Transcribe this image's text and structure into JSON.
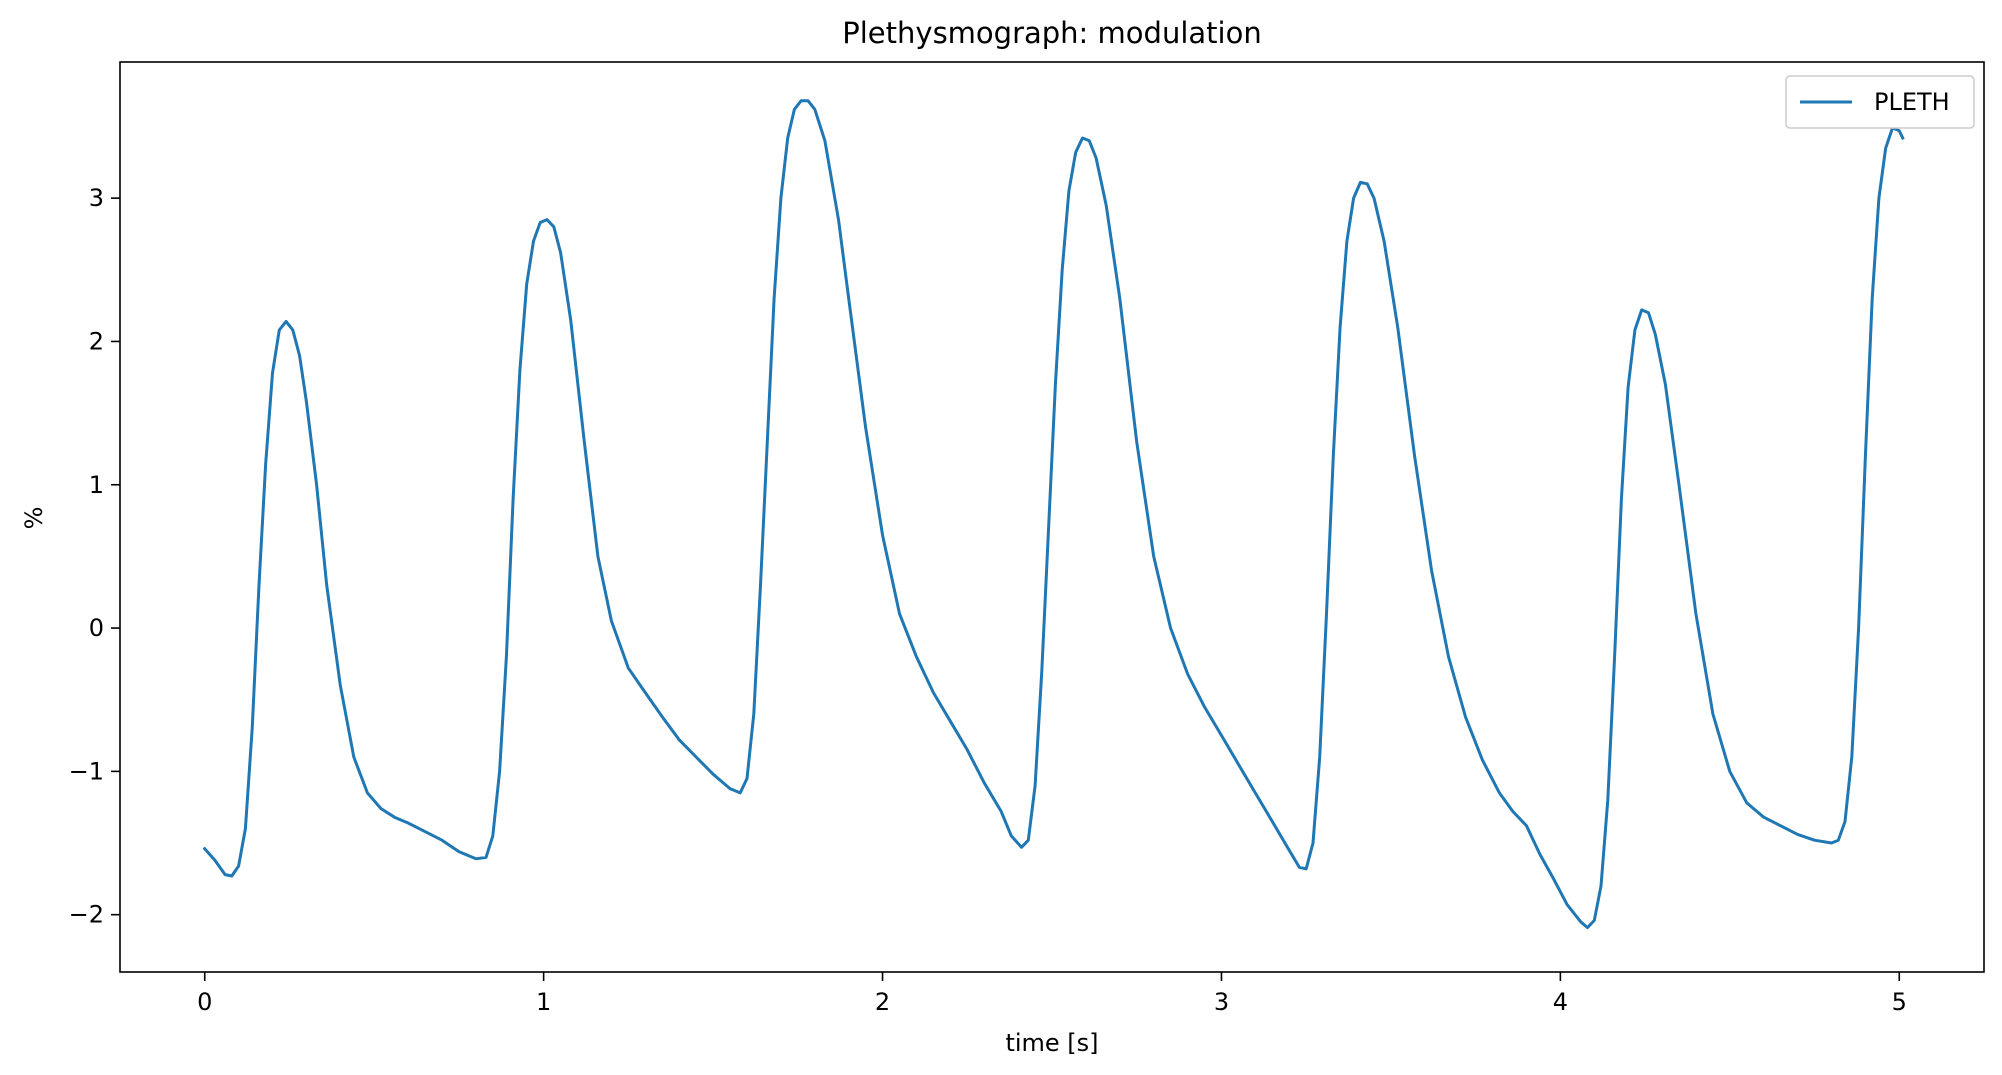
{
  "chart_data": {
    "type": "line",
    "title": "Plethysmograph: modulation",
    "xlabel": "time [s]",
    "ylabel": "%",
    "xlim": [
      -0.25,
      5.25
    ],
    "ylim": [
      -2.4,
      3.95
    ],
    "x_ticks": [
      0,
      1,
      2,
      3,
      4,
      5
    ],
    "x_tick_labels": [
      "0",
      "1",
      "2",
      "3",
      "4",
      "5"
    ],
    "y_ticks": [
      -2,
      -1,
      0,
      1,
      2,
      3
    ],
    "y_tick_labels": [
      "−2",
      "−1",
      "0",
      "1",
      "2",
      "3"
    ],
    "grid": false,
    "legend_position": "top-right",
    "series": [
      {
        "name": "PLETH",
        "color": "#1f77b4",
        "points": [
          [
            0.0,
            -1.54
          ],
          [
            0.03,
            -1.62
          ],
          [
            0.06,
            -1.72
          ],
          [
            0.08,
            -1.73
          ],
          [
            0.1,
            -1.66
          ],
          [
            0.12,
            -1.4
          ],
          [
            0.14,
            -0.7
          ],
          [
            0.16,
            0.3
          ],
          [
            0.18,
            1.15
          ],
          [
            0.2,
            1.78
          ],
          [
            0.22,
            2.08
          ],
          [
            0.24,
            2.14
          ],
          [
            0.26,
            2.08
          ],
          [
            0.28,
            1.9
          ],
          [
            0.3,
            1.58
          ],
          [
            0.33,
            1.0
          ],
          [
            0.36,
            0.3
          ],
          [
            0.4,
            -0.4
          ],
          [
            0.44,
            -0.9
          ],
          [
            0.48,
            -1.15
          ],
          [
            0.52,
            -1.26
          ],
          [
            0.56,
            -1.32
          ],
          [
            0.6,
            -1.36
          ],
          [
            0.65,
            -1.42
          ],
          [
            0.7,
            -1.48
          ],
          [
            0.75,
            -1.56
          ],
          [
            0.8,
            -1.61
          ],
          [
            0.83,
            -1.6
          ],
          [
            0.85,
            -1.45
          ],
          [
            0.87,
            -1.0
          ],
          [
            0.89,
            -0.2
          ],
          [
            0.91,
            0.9
          ],
          [
            0.93,
            1.8
          ],
          [
            0.95,
            2.4
          ],
          [
            0.97,
            2.7
          ],
          [
            0.99,
            2.83
          ],
          [
            1.01,
            2.85
          ],
          [
            1.03,
            2.8
          ],
          [
            1.05,
            2.62
          ],
          [
            1.08,
            2.15
          ],
          [
            1.12,
            1.3
          ],
          [
            1.16,
            0.5
          ],
          [
            1.2,
            0.05
          ],
          [
            1.25,
            -0.28
          ],
          [
            1.3,
            -0.45
          ],
          [
            1.35,
            -0.62
          ],
          [
            1.4,
            -0.78
          ],
          [
            1.45,
            -0.9
          ],
          [
            1.5,
            -1.02
          ],
          [
            1.55,
            -1.12
          ],
          [
            1.58,
            -1.15
          ],
          [
            1.6,
            -1.05
          ],
          [
            1.62,
            -0.6
          ],
          [
            1.64,
            0.3
          ],
          [
            1.66,
            1.3
          ],
          [
            1.68,
            2.3
          ],
          [
            1.7,
            3.0
          ],
          [
            1.72,
            3.42
          ],
          [
            1.74,
            3.62
          ],
          [
            1.76,
            3.68
          ],
          [
            1.78,
            3.68
          ],
          [
            1.8,
            3.62
          ],
          [
            1.83,
            3.4
          ],
          [
            1.87,
            2.85
          ],
          [
            1.9,
            2.3
          ],
          [
            1.95,
            1.4
          ],
          [
            2.0,
            0.65
          ],
          [
            2.05,
            0.1
          ],
          [
            2.1,
            -0.2
          ],
          [
            2.15,
            -0.45
          ],
          [
            2.2,
            -0.65
          ],
          [
            2.25,
            -0.85
          ],
          [
            2.3,
            -1.08
          ],
          [
            2.35,
            -1.28
          ],
          [
            2.38,
            -1.45
          ],
          [
            2.41,
            -1.53
          ],
          [
            2.43,
            -1.48
          ],
          [
            2.45,
            -1.1
          ],
          [
            2.47,
            -0.3
          ],
          [
            2.49,
            0.7
          ],
          [
            2.51,
            1.7
          ],
          [
            2.53,
            2.5
          ],
          [
            2.55,
            3.05
          ],
          [
            2.57,
            3.32
          ],
          [
            2.59,
            3.42
          ],
          [
            2.61,
            3.4
          ],
          [
            2.63,
            3.28
          ],
          [
            2.66,
            2.95
          ],
          [
            2.7,
            2.3
          ],
          [
            2.75,
            1.3
          ],
          [
            2.8,
            0.5
          ],
          [
            2.85,
            0.0
          ],
          [
            2.9,
            -0.32
          ],
          [
            2.95,
            -0.55
          ],
          [
            3.0,
            -0.75
          ],
          [
            3.05,
            -0.95
          ],
          [
            3.1,
            -1.15
          ],
          [
            3.15,
            -1.35
          ],
          [
            3.2,
            -1.55
          ],
          [
            3.23,
            -1.67
          ],
          [
            3.25,
            -1.68
          ],
          [
            3.27,
            -1.5
          ],
          [
            3.29,
            -0.9
          ],
          [
            3.31,
            0.1
          ],
          [
            3.33,
            1.2
          ],
          [
            3.35,
            2.1
          ],
          [
            3.37,
            2.7
          ],
          [
            3.39,
            3.0
          ],
          [
            3.41,
            3.11
          ],
          [
            3.43,
            3.1
          ],
          [
            3.45,
            3.0
          ],
          [
            3.48,
            2.7
          ],
          [
            3.52,
            2.1
          ],
          [
            3.57,
            1.2
          ],
          [
            3.62,
            0.4
          ],
          [
            3.67,
            -0.2
          ],
          [
            3.72,
            -0.62
          ],
          [
            3.77,
            -0.92
          ],
          [
            3.82,
            -1.15
          ],
          [
            3.86,
            -1.28
          ],
          [
            3.9,
            -1.38
          ],
          [
            3.94,
            -1.58
          ],
          [
            3.98,
            -1.75
          ],
          [
            4.02,
            -1.93
          ],
          [
            4.06,
            -2.05
          ],
          [
            4.08,
            -2.09
          ],
          [
            4.1,
            -2.04
          ],
          [
            4.12,
            -1.8
          ],
          [
            4.14,
            -1.2
          ],
          [
            4.16,
            -0.2
          ],
          [
            4.18,
            0.9
          ],
          [
            4.2,
            1.68
          ],
          [
            4.22,
            2.08
          ],
          [
            4.24,
            2.22
          ],
          [
            4.26,
            2.2
          ],
          [
            4.28,
            2.05
          ],
          [
            4.31,
            1.7
          ],
          [
            4.35,
            1.0
          ],
          [
            4.4,
            0.1
          ],
          [
            4.45,
            -0.6
          ],
          [
            4.5,
            -1.0
          ],
          [
            4.55,
            -1.22
          ],
          [
            4.6,
            -1.32
          ],
          [
            4.65,
            -1.38
          ],
          [
            4.7,
            -1.44
          ],
          [
            4.75,
            -1.48
          ],
          [
            4.8,
            -1.5
          ],
          [
            4.82,
            -1.48
          ],
          [
            4.84,
            -1.35
          ],
          [
            4.86,
            -0.9
          ],
          [
            4.88,
            0.0
          ],
          [
            4.9,
            1.2
          ],
          [
            4.92,
            2.3
          ],
          [
            4.94,
            3.0
          ],
          [
            4.96,
            3.35
          ],
          [
            4.98,
            3.49
          ],
          [
            5.0,
            3.47
          ],
          [
            5.01,
            3.42
          ]
        ]
      }
    ]
  }
}
